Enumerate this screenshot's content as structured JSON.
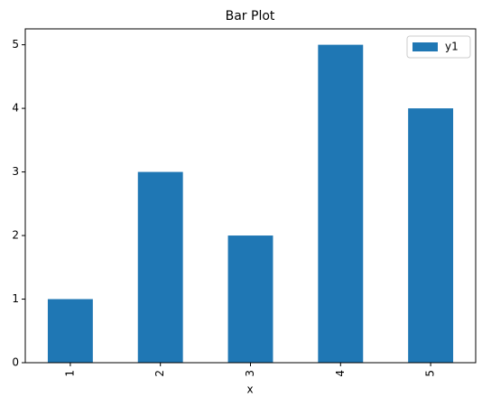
{
  "chart_data": {
    "type": "bar",
    "title": "Bar Plot",
    "x_label": "x",
    "categories": [
      "1",
      "2",
      "3",
      "4",
      "5"
    ],
    "series": [
      {
        "name": "y1",
        "color": "#1f77b4",
        "values": [
          1,
          3,
          2,
          5,
          4
        ]
      }
    ],
    "ylim": [
      0,
      5.25
    ],
    "yticks": [
      0,
      1,
      2,
      3,
      4,
      5
    ],
    "grid": false,
    "legend": "upper right"
  }
}
